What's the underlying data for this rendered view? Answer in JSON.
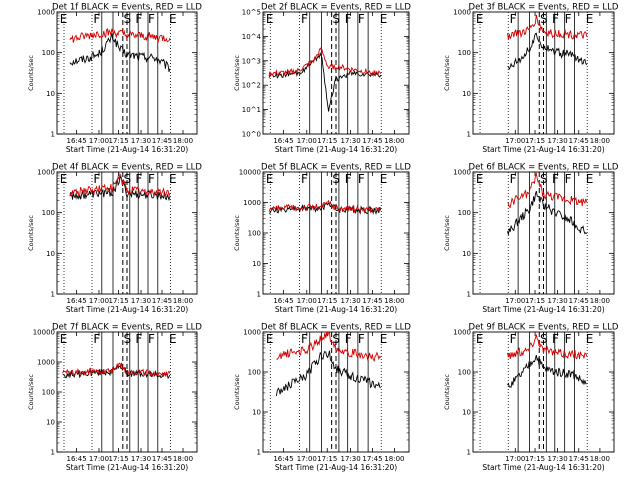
{
  "figure": {
    "panels": [
      {
        "title": "Det 1f BLACK = Events, RED = LLD",
        "ylabel": "Counts/sec",
        "xlabel": "Start Time (21-Aug-14 16:31:20)",
        "xticks": [
          "16:45",
          "17:00",
          "17:15",
          "17:30",
          "17:45",
          "18:00"
        ],
        "yticks": [
          "1",
          "10",
          "100",
          "1000"
        ],
        "markers": [
          "E",
          "F",
          "S",
          "F",
          "F",
          "E"
        ]
      },
      {
        "title": "Det 2f BLACK = Events, RED = LLD",
        "ylabel": "Counts/sec",
        "xlabel": "Start Time (21-Aug-14 16:31:20)",
        "xticks": [
          "16:45",
          "17:00",
          "17:15",
          "17:30",
          "17:45",
          "18:00"
        ],
        "yticks": [
          "10^0",
          "10^1",
          "10^2",
          "10^3",
          "10^4",
          "10^5"
        ],
        "markers": [
          "E",
          "F",
          "S",
          "F",
          "F",
          "E"
        ]
      },
      {
        "title": "Det 3f BLACK = Events, RED = LLD",
        "ylabel": "Counts/sec",
        "xlabel": "Start Time (21-Aug-14 16:31:20)",
        "xticks": [
          "17:00",
          "17:15",
          "17:30",
          "17:45",
          "18:00"
        ],
        "yticks": [
          "1",
          "10",
          "100",
          "1000"
        ],
        "markers": [
          "E",
          "F",
          "S",
          "F",
          "F",
          "E"
        ]
      },
      {
        "title": "Det 4f BLACK = Events, RED = LLD",
        "ylabel": "Counts/sec",
        "xlabel": "Start Time (21-Aug-14 16:31:20)",
        "xticks": [
          "16:45",
          "17:00",
          "17:15",
          "17:30",
          "17:45",
          "18:00"
        ],
        "yticks": [
          "1",
          "10",
          "100",
          "1000"
        ],
        "markers": [
          "E",
          "F",
          "S",
          "F",
          "F",
          "E"
        ]
      },
      {
        "title": "Det 5f BLACK = Events, RED = LLD",
        "ylabel": "Counts/sec",
        "xlabel": "Start Time (21-Aug-14 16:31:20)",
        "xticks": [
          "16:45",
          "17:00",
          "17:15",
          "17:30",
          "17:45",
          "18:00"
        ],
        "yticks": [
          "1",
          "10",
          "100",
          "1000",
          "10000"
        ],
        "markers": [
          "E",
          "F",
          "S",
          "F",
          "F",
          "E"
        ]
      },
      {
        "title": "Det 6f BLACK = Events, RED = LLD",
        "ylabel": "Counts/sec",
        "xlabel": "Start Time (21-Aug-14 16:31:20)",
        "xticks": [
          "17:00",
          "17:15",
          "17:30",
          "17:45",
          "18:00"
        ],
        "yticks": [
          "1",
          "10",
          "100",
          "1000"
        ],
        "markers": [
          "E",
          "F",
          "S",
          "F",
          "F",
          "E"
        ]
      },
      {
        "title": "Det 7f BLACK = Events, RED = LLD",
        "ylabel": "Counts/sec",
        "xlabel": "Start Time (21-Aug-14 16:31:20)",
        "xticks": [
          "16:45",
          "17:00",
          "17:15",
          "17:30",
          "17:45",
          "18:00"
        ],
        "yticks": [
          "1",
          "10",
          "100",
          "1000",
          "10000"
        ],
        "markers": [
          "E",
          "F",
          "S",
          "F",
          "F",
          "E"
        ]
      },
      {
        "title": "Det 8f BLACK = Events, RED = LLD",
        "ylabel": "Counts/sec",
        "xlabel": "Start Time (21-Aug-14 16:31:20)",
        "xticks": [
          "16:45",
          "17:00",
          "17:15",
          "17:30",
          "17:45",
          "18:00"
        ],
        "yticks": [
          "1",
          "10",
          "100",
          "1000"
        ],
        "markers": [
          "E",
          "F",
          "S",
          "F",
          "F",
          "E"
        ]
      },
      {
        "title": "Det 9f BLACK = Events, RED = LLD",
        "ylabel": "Counts/sec",
        "xlabel": "Start Time (21-Aug-14 16:31:20)",
        "xticks": [
          "17:00",
          "17:15",
          "17:30",
          "17:45",
          "18:00"
        ],
        "yticks": [
          "1",
          "10",
          "100",
          "1000"
        ],
        "markers": [
          "E",
          "F",
          "S",
          "F",
          "F",
          "E"
        ]
      }
    ]
  },
  "chart_data": [
    {
      "type": "line",
      "title": "Det 1f BLACK = Events, RED = LLD",
      "xlabel": "Start Time (21-Aug-14 16:31:20)",
      "ylabel": "Counts/sec",
      "x": [
        "16:40",
        "16:50",
        "17:00",
        "17:05",
        "17:10",
        "17:15",
        "17:20",
        "17:30",
        "17:40",
        "17:50"
      ],
      "ylim": [
        1,
        1000
      ],
      "yscale": "log",
      "series": [
        {
          "values": [
            60,
            70,
            90,
            150,
            250,
            120,
            90,
            80,
            75,
            40
          ],
          "color": "#000000"
        },
        {
          "values": [
            210,
            250,
            300,
            300,
            320,
            300,
            270,
            260,
            240,
            230
          ],
          "color": "#d40000"
        }
      ]
    },
    {
      "type": "line",
      "title": "Det 2f BLACK = Events, RED = LLD",
      "xlabel": "Start Time (21-Aug-14 16:31:20)",
      "ylabel": "Counts/sec",
      "x": [
        "16:35",
        "16:45",
        "16:55",
        "17:05",
        "17:10",
        "17:15",
        "17:20",
        "17:30",
        "17:40",
        "17:50"
      ],
      "ylim": [
        1,
        100000
      ],
      "yscale": "log",
      "series": [
        {
          "values": [
            250,
            260,
            300,
            900,
            2000,
            10,
            180,
            300,
            280,
            260
          ],
          "color": "#000000"
        },
        {
          "values": [
            300,
            320,
            400,
            1000,
            3000,
            500,
            600,
            450,
            350,
            300
          ],
          "color": "#d40000"
        }
      ]
    },
    {
      "type": "line",
      "title": "Det 3f BLACK = Events, RED = LLD",
      "xlabel": "Start Time (21-Aug-14 16:31:20)",
      "ylabel": "Counts/sec",
      "x": [
        "16:55",
        "17:00",
        "17:05",
        "17:10",
        "17:15",
        "17:20",
        "17:30",
        "17:40",
        "17:50"
      ],
      "ylim": [
        1,
        1000
      ],
      "yscale": "log",
      "series": [
        {
          "values": [
            40,
            60,
            80,
            120,
            250,
            150,
            100,
            90,
            50
          ],
          "color": "#000000"
        },
        {
          "values": [
            260,
            300,
            320,
            350,
            700,
            320,
            300,
            280,
            250
          ],
          "color": "#d40000"
        }
      ]
    },
    {
      "type": "line",
      "title": "Det 4f BLACK = Events, RED = LLD",
      "xlabel": "Start Time (21-Aug-14 16:31:20)",
      "ylabel": "Counts/sec",
      "x": [
        "16:40",
        "16:50",
        "17:00",
        "17:10",
        "17:15",
        "17:20",
        "17:30",
        "17:40",
        "17:50"
      ],
      "ylim": [
        1,
        1000
      ],
      "yscale": "log",
      "series": [
        {
          "values": [
            260,
            280,
            300,
            320,
            700,
            300,
            280,
            270,
            250
          ],
          "color": "#000000"
        },
        {
          "values": [
            300,
            350,
            380,
            400,
            750,
            360,
            330,
            310,
            300
          ],
          "color": "#d40000"
        }
      ]
    },
    {
      "type": "line",
      "title": "Det 5f BLACK = Events, RED = LLD",
      "xlabel": "Start Time (21-Aug-14 16:31:20)",
      "ylabel": "Counts/sec",
      "x": [
        "16:35",
        "16:45",
        "17:00",
        "17:10",
        "17:15",
        "17:20",
        "17:30",
        "17:40",
        "17:50"
      ],
      "ylim": [
        1,
        10000
      ],
      "yscale": "log",
      "series": [
        {
          "values": [
            550,
            600,
            650,
            650,
            1000,
            600,
            580,
            560,
            550
          ],
          "color": "#000000"
        },
        {
          "values": [
            600,
            650,
            700,
            700,
            1000,
            650,
            620,
            600,
            580
          ],
          "color": "#d40000"
        }
      ]
    },
    {
      "type": "line",
      "title": "Det 6f BLACK = Events, RED = LLD",
      "xlabel": "Start Time (21-Aug-14 16:31:20)",
      "ylabel": "Counts/sec",
      "x": [
        "16:55",
        "17:00",
        "17:05",
        "17:10",
        "17:15",
        "17:20",
        "17:30",
        "17:40",
        "17:50"
      ],
      "ylim": [
        1,
        1000
      ],
      "yscale": "log",
      "series": [
        {
          "values": [
            30,
            50,
            80,
            120,
            300,
            150,
            90,
            60,
            30
          ],
          "color": "#000000"
        },
        {
          "values": [
            150,
            200,
            250,
            300,
            800,
            280,
            240,
            200,
            180
          ],
          "color": "#d40000"
        }
      ]
    },
    {
      "type": "line",
      "title": "Det 7f BLACK = Events, RED = LLD",
      "xlabel": "Start Time (21-Aug-14 16:31:20)",
      "ylabel": "Counts/sec",
      "x": [
        "16:35",
        "16:45",
        "17:00",
        "17:10",
        "17:15",
        "17:20",
        "17:30",
        "17:40",
        "17:50"
      ],
      "ylim": [
        1,
        10000
      ],
      "yscale": "log",
      "series": [
        {
          "values": [
            380,
            400,
            450,
            480,
            800,
            420,
            400,
            380,
            370
          ],
          "color": "#000000"
        },
        {
          "values": [
            420,
            450,
            500,
            520,
            850,
            470,
            440,
            420,
            410
          ],
          "color": "#d40000"
        }
      ]
    },
    {
      "type": "line",
      "title": "Det 8f BLACK = Events, RED = LLD",
      "xlabel": "Start Time (21-Aug-14 16:31:20)",
      "ylabel": "Counts/sec",
      "x": [
        "16:40",
        "16:50",
        "17:00",
        "17:05",
        "17:10",
        "17:15",
        "17:20",
        "17:30",
        "17:40",
        "17:50"
      ],
      "ylim": [
        1,
        1000
      ],
      "yscale": "log",
      "series": [
        {
          "values": [
            30,
            50,
            80,
            150,
            250,
            300,
            120,
            80,
            60,
            40
          ],
          "color": "#000000"
        },
        {
          "values": [
            250,
            300,
            350,
            450,
            700,
            900,
            400,
            300,
            260,
            230
          ],
          "color": "#d40000"
        }
      ]
    },
    {
      "type": "line",
      "title": "Det 9f BLACK = Events, RED = LLD",
      "xlabel": "Start Time (21-Aug-14 16:31:20)",
      "ylabel": "Counts/sec",
      "x": [
        "16:55",
        "17:00",
        "17:05",
        "17:10",
        "17:15",
        "17:20",
        "17:30",
        "17:40",
        "17:50"
      ],
      "ylim": [
        1,
        1000
      ],
      "yscale": "log",
      "series": [
        {
          "values": [
            40,
            60,
            90,
            150,
            250,
            120,
            100,
            90,
            50
          ],
          "color": "#000000"
        },
        {
          "values": [
            250,
            300,
            320,
            380,
            800,
            350,
            300,
            280,
            250
          ],
          "color": "#d40000"
        }
      ]
    }
  ]
}
